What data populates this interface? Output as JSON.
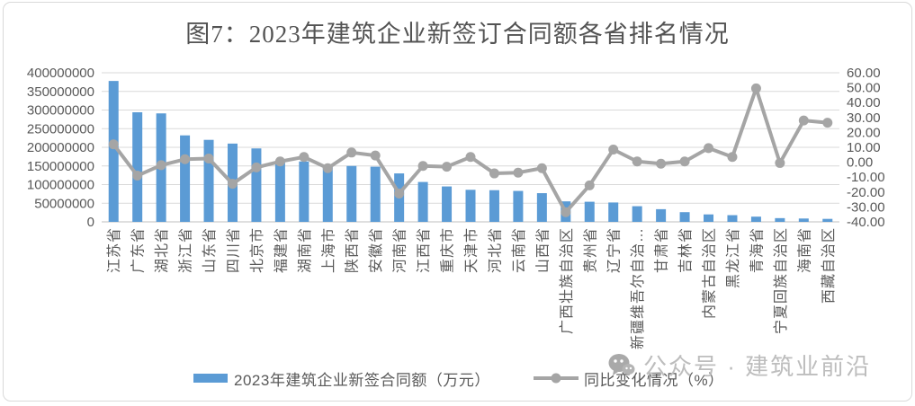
{
  "title": "图7：2023年建筑企业新签订合同额各省排名情况",
  "legend": {
    "bar_label": "2023年建筑企业新签合同额（万元）",
    "line_label": "同比变化情况（%）"
  },
  "watermark": {
    "icon": "wechat-public-account-icon",
    "text": "公众号 · 建筑业前沿"
  },
  "colors": {
    "bar": "#5B9BD5",
    "line": "#A5A5A5",
    "grid": "#D9D9D9",
    "axis_line": "#BFBFBF",
    "axis_text": "#595959",
    "title_text": "#535353",
    "watermark": "#BDBDBD"
  },
  "chart_data": {
    "type": "bar",
    "combo": "bar+line",
    "title": "图7：2023年建筑企业新签订合同额各省排名情况",
    "grid": true,
    "legend_position": "bottom",
    "categories": [
      "江苏省",
      "广东省",
      "湖北省",
      "浙江省",
      "山东省",
      "四川省",
      "北京市",
      "福建省",
      "湖南省",
      "上海市",
      "陕西省",
      "安徽省",
      "河南省",
      "江西省",
      "重庆市",
      "天津市",
      "河北省",
      "云南省",
      "山西省",
      "广西壮族自治区",
      "贵州省",
      "辽宁省",
      "新疆维吾尔自治…",
      "甘肃省",
      "吉林省",
      "内蒙古自治区",
      "黑龙江省",
      "青海省",
      "宁夏回族自治区",
      "海南省",
      "西藏自治区"
    ],
    "series": [
      {
        "name": "2023年建筑企业新签合同额（万元）",
        "type": "bar",
        "axis": "left",
        "color": "#5B9BD5",
        "values": [
          378000000,
          294000000,
          291000000,
          232000000,
          220000000,
          210000000,
          197000000,
          164000000,
          162000000,
          151000000,
          150000000,
          148000000,
          130000000,
          107000000,
          95000000,
          86000000,
          85000000,
          83000000,
          77000000,
          55000000,
          54000000,
          52000000,
          42000000,
          34000000,
          26000000,
          20000000,
          18000000,
          14000000,
          10000000,
          9000000,
          8000000
        ]
      },
      {
        "name": "同比变化情况（%）",
        "type": "line",
        "axis": "right",
        "color": "#A5A5A5",
        "values": [
          12.0,
          -9.0,
          -2.0,
          2.0,
          2.5,
          -14.5,
          -3.5,
          0.5,
          3.5,
          -4.0,
          6.5,
          4.5,
          -21.0,
          -2.5,
          -3.0,
          3.5,
          -7.5,
          -7.0,
          -4.0,
          -33.5,
          -15.5,
          8.5,
          0.5,
          -1.0,
          0.5,
          9.5,
          3.5,
          49.5,
          -0.5,
          28.0,
          26.5
        ]
      }
    ],
    "left_axis": {
      "min": 0,
      "max": 400000000,
      "tick_labels": [
        "400000000",
        "350000000",
        "300000000",
        "250000000",
        "200000000",
        "150000000",
        "100000000",
        "50000000",
        "0"
      ]
    },
    "right_axis": {
      "min": -40,
      "max": 60,
      "tick_labels": [
        "60.00",
        "50.00",
        "40.00",
        "30.00",
        "20.00",
        "10.00",
        "0.00",
        "-10.00",
        "-20.00",
        "-30.00",
        "-40.00"
      ]
    }
  }
}
